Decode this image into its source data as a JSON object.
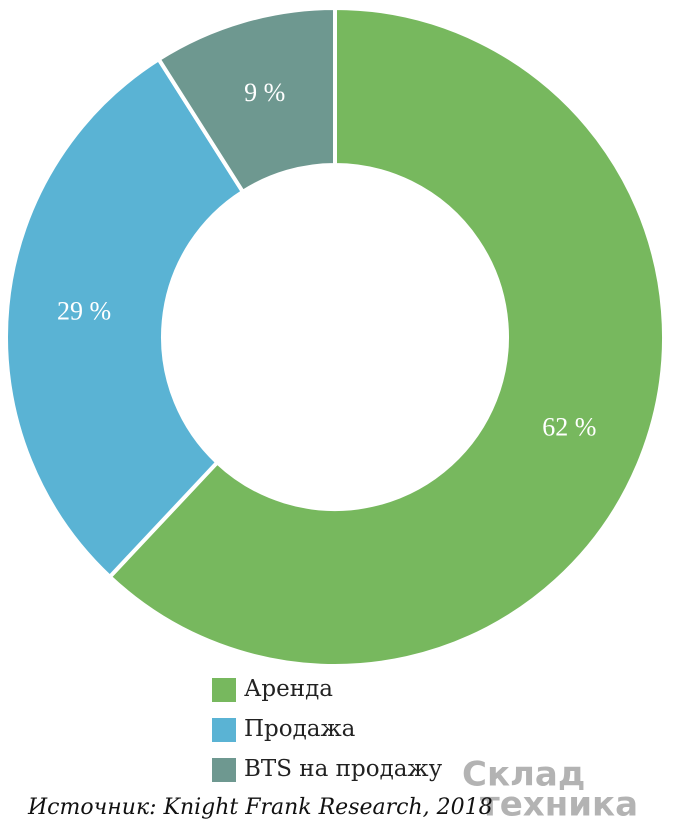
{
  "chart_data": {
    "type": "donut",
    "categories": [
      "Аренда",
      "Продажа",
      "BTS на продажу"
    ],
    "values": [
      62,
      29,
      9
    ],
    "value_labels": [
      "62 %",
      "29 %",
      "9 %"
    ],
    "colors": [
      "#77b85e",
      "#5ab3d4",
      "#6e9890"
    ],
    "source": "Источник: Knight Frank Research, 2018",
    "watermark": [
      "Склад",
      "техника"
    ]
  }
}
